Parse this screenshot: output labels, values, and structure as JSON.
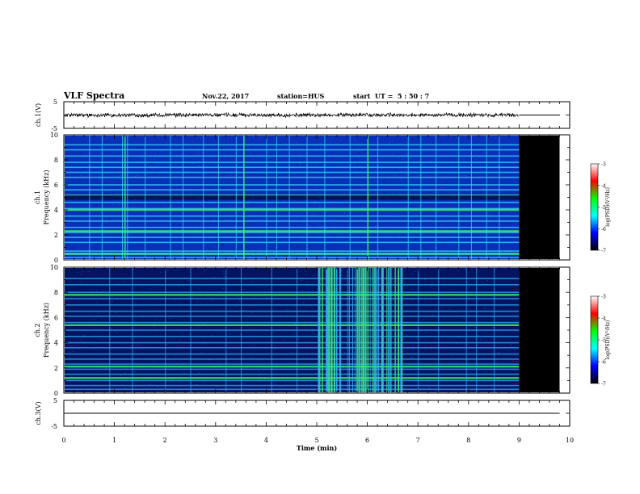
{
  "header": {
    "title": "VLF Spectra",
    "date": "Nov.22, 2017",
    "station": "station=HUS",
    "start": "start  UT =  5 : 50 : 7"
  },
  "chart_data": [
    {
      "type": "line",
      "panel": "ch1-waveform",
      "ylabel": "ch.1(V)",
      "ylim": [
        -5,
        5
      ],
      "yticks": [
        "5",
        "-5"
      ],
      "xlim": [
        0,
        10
      ],
      "data_end_min": 9.0,
      "level_after_end": 0,
      "amplitude_v": 0.6,
      "trace_color": "#000000"
    },
    {
      "type": "heatmap",
      "panel": "ch1-spectrogram",
      "ylabel_line1": "ch.1",
      "ylabel_line2": "Frequency (kHz)",
      "ylim": [
        0,
        10
      ],
      "yticks": [
        "0",
        "2",
        "4",
        "6",
        "8",
        "10"
      ],
      "xlim": [
        0,
        10
      ],
      "data_end_min": 9.0,
      "nodata_until_min": 9.8,
      "base_color": "#0a2fb8",
      "band_color": "#33e0ff",
      "strong_color": "#3cf06a",
      "nodata_color": "#000000",
      "bands_khz": [
        0.2,
        0.45,
        0.7,
        1.4,
        1.8,
        2.2,
        2.6,
        3.1,
        3.5,
        4.1,
        4.6,
        5.2,
        5.6,
        6.0,
        6.6,
        7.0,
        7.4,
        7.8,
        8.3,
        8.8,
        9.2
      ],
      "strong_bands_khz": [
        0.5,
        2.3,
        4.0
      ],
      "dark_band_khz": [
        4.8,
        5.3
      ],
      "spike_times_min": [
        0.5,
        0.75,
        1.15,
        1.2,
        1.25,
        1.6,
        2.1,
        2.35,
        2.75,
        3.05,
        3.4,
        3.55,
        4.0,
        4.2,
        4.45,
        4.8,
        5.15,
        5.65,
        6.0,
        6.2,
        6.8,
        7.05,
        7.35,
        7.8,
        8.05,
        8.35,
        8.6
      ],
      "strong_spike_times_min": [
        1.2,
        3.55,
        6.0
      ]
    },
    {
      "type": "heatmap",
      "panel": "ch2-spectrogram",
      "ylabel_line1": "ch.2",
      "ylabel_line2": "Frequency (kHz)",
      "ylim": [
        0,
        10
      ],
      "yticks": [
        "0",
        "2",
        "4",
        "6",
        "8",
        "10"
      ],
      "xlim": [
        0,
        10
      ],
      "data_end_min": 9.0,
      "nodata_until_min": 9.8,
      "base_color": "#031460",
      "band_color": "#2fb0ff",
      "strong_color": "#3cf06a",
      "nodata_color": "#000000",
      "bands_khz": [
        0.3,
        0.6,
        1.0,
        1.5,
        1.9,
        2.3,
        2.7,
        3.1,
        3.6,
        4.0,
        4.5,
        5.0,
        5.6,
        6.1,
        6.5,
        7.0,
        7.5,
        8.0,
        8.6,
        9.1
      ],
      "strong_bands_khz": [
        1.2,
        2.1,
        5.4,
        7.8
      ],
      "dark_band_khz": [],
      "spike_times_min": [
        0.9,
        1.35,
        2.0,
        2.5,
        3.2,
        3.5,
        4.1,
        4.6,
        5.1,
        5.2,
        5.45,
        5.6,
        5.75,
        5.95,
        6.05,
        6.15,
        6.3,
        6.55,
        6.65,
        7.0,
        7.4,
        7.95,
        8.15,
        8.5
      ],
      "strong_spike_times_min": [
        5.1,
        5.9,
        6.0,
        6.1,
        6.6
      ],
      "storm_range_min": [
        5.0,
        6.7
      ]
    },
    {
      "type": "line",
      "panel": "ch3-waveform",
      "ylabel": "ch.3(V)",
      "ylim": [
        -5,
        5
      ],
      "yticks": [
        "5",
        "-5"
      ],
      "xlim": [
        0,
        10
      ],
      "data_end_min": 9.8,
      "amplitude_v": 0,
      "trace_color": "#000000"
    }
  ],
  "xaxis": {
    "label": "Time (min)",
    "ticks": [
      "0",
      "1",
      "2",
      "3",
      "4",
      "5",
      "6",
      "7",
      "8",
      "9",
      "10"
    ]
  },
  "colorbar": {
    "label": "log(PSD)(V²/Hz)",
    "ticks": [
      "-3",
      "-4",
      "-5",
      "-6",
      "-7"
    ],
    "range": [
      -7,
      -3
    ],
    "colors": [
      "#000000",
      "#0000ff",
      "#00ffff",
      "#00ff00",
      "#ff0000",
      "#ffffff"
    ]
  }
}
